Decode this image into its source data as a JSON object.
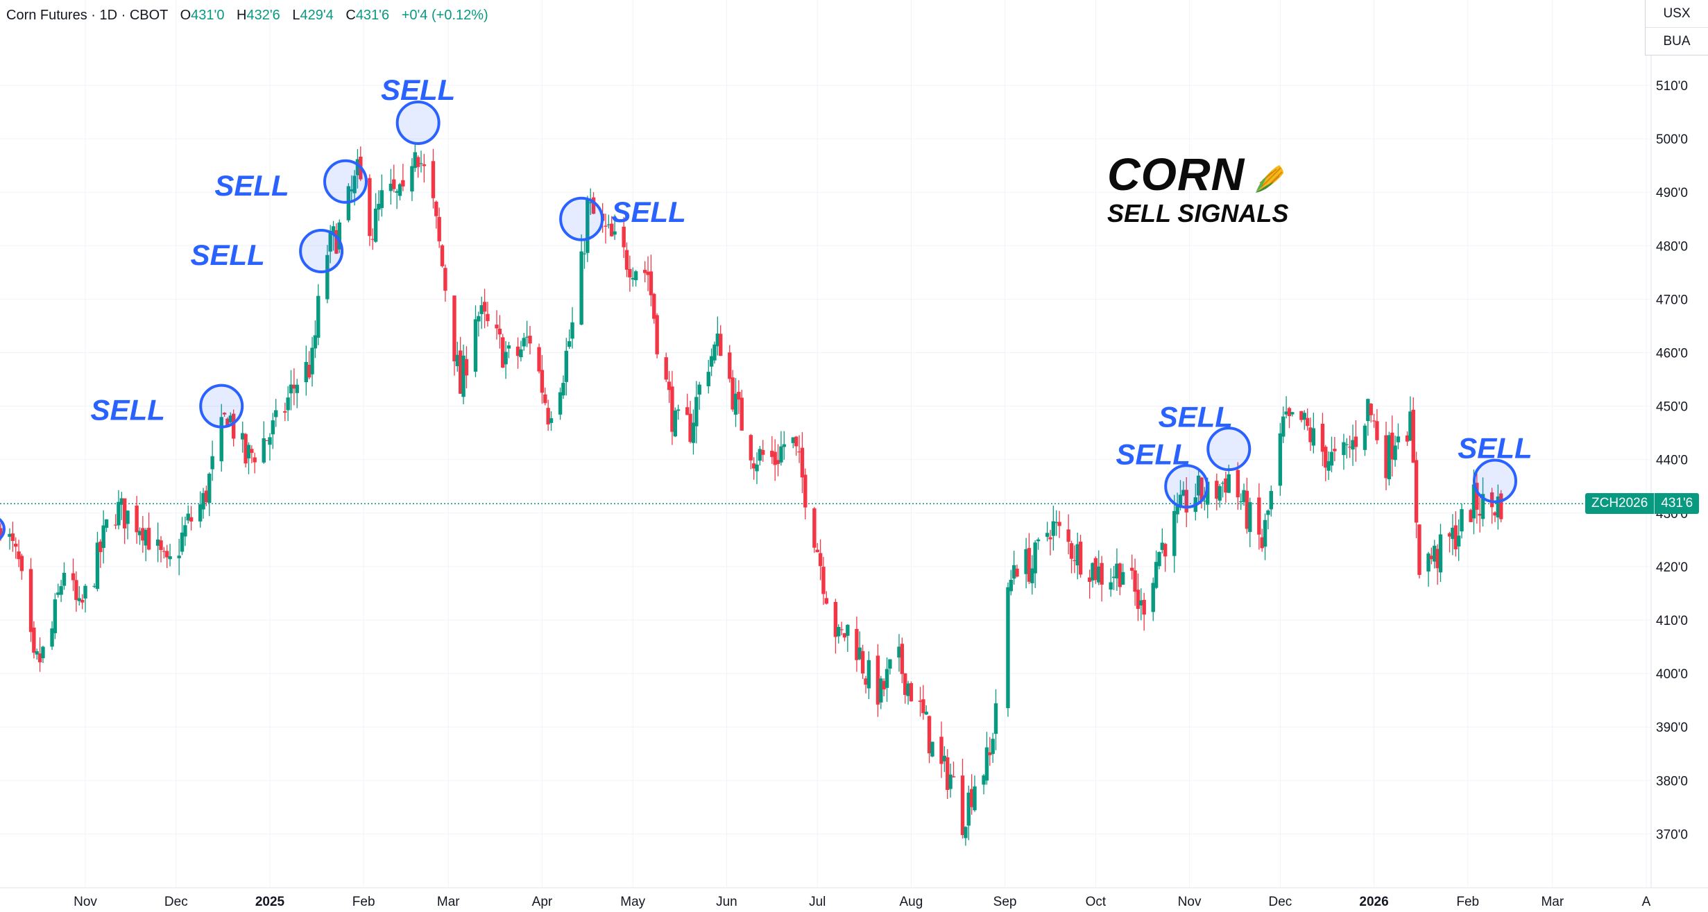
{
  "header": {
    "symbol": "Corn Futures · 1D · CBOT",
    "open_label": "O",
    "open": "431'0",
    "high_label": "H",
    "high": "432'6",
    "low_label": "L",
    "low": "429'4",
    "close_label": "C",
    "close": "431'6",
    "change": "+0'4 (+0.12%)"
  },
  "currency_panel": {
    "currency": "USX",
    "unit": "BUA"
  },
  "branding": {
    "title": "CORN",
    "subtitle": "SELL SIGNALS"
  },
  "price_badge": {
    "symbol": "ZCH2026",
    "price": "431'6"
  },
  "signal_label": "SELL",
  "colors": {
    "up": "#089981",
    "down": "#f23645",
    "signal": "#2962ff",
    "grid": "#f0f3fa",
    "axis_text": "#131722"
  },
  "chart_data": {
    "type": "candlestick",
    "title": "",
    "xlabel": "",
    "ylabel": "",
    "ylim": [
      364,
      516
    ],
    "grid": true,
    "y_ticks": [
      {
        "v": 510,
        "label": "510'0"
      },
      {
        "v": 500,
        "label": "500'0"
      },
      {
        "v": 490,
        "label": "490'0"
      },
      {
        "v": 480,
        "label": "480'0"
      },
      {
        "v": 470,
        "label": "470'0"
      },
      {
        "v": 460,
        "label": "460'0"
      },
      {
        "v": 450,
        "label": "450'0"
      },
      {
        "v": 440,
        "label": "440'0"
      },
      {
        "v": 430,
        "label": "430'0"
      },
      {
        "v": 420,
        "label": "420'0"
      },
      {
        "v": 410,
        "label": "410'0"
      },
      {
        "v": 400,
        "label": "400'0"
      },
      {
        "v": 390,
        "label": "390'0"
      },
      {
        "v": 380,
        "label": "380'0"
      },
      {
        "v": 370,
        "label": "370'0"
      }
    ],
    "x_ticks": [
      {
        "date": "2024-11-01",
        "label": "Nov",
        "bold": false
      },
      {
        "date": "2024-12-01",
        "label": "Dec",
        "bold": false
      },
      {
        "date": "2025-01-01",
        "label": "2025",
        "bold": true
      },
      {
        "date": "2025-02-01",
        "label": "Feb",
        "bold": false
      },
      {
        "date": "2025-03-01",
        "label": "Mar",
        "bold": false
      },
      {
        "date": "2025-04-01",
        "label": "Apr",
        "bold": false
      },
      {
        "date": "2025-05-01",
        "label": "May",
        "bold": false
      },
      {
        "date": "2025-06-01",
        "label": "Jun",
        "bold": false
      },
      {
        "date": "2025-07-01",
        "label": "Jul",
        "bold": false
      },
      {
        "date": "2025-08-01",
        "label": "Aug",
        "bold": false
      },
      {
        "date": "2025-09-01",
        "label": "Sep",
        "bold": false
      },
      {
        "date": "2025-10-01",
        "label": "Oct",
        "bold": false
      },
      {
        "date": "2025-11-01",
        "label": "Nov",
        "bold": false
      },
      {
        "date": "2025-12-01",
        "label": "Dec",
        "bold": false
      },
      {
        "date": "2026-01-01",
        "label": "2026",
        "bold": true
      },
      {
        "date": "2026-02-01",
        "label": "Feb",
        "bold": false
      },
      {
        "date": "2026-03-01",
        "label": "Mar",
        "bold": false
      },
      {
        "date": "2026-04-01",
        "label": "A",
        "bold": false
      }
    ],
    "last_price": 431.75,
    "series_shape": [
      [
        "2024-10-04",
        429
      ],
      [
        "2024-10-10",
        420
      ],
      [
        "2024-10-15",
        401
      ],
      [
        "2024-10-20",
        405
      ],
      [
        "2024-10-25",
        420
      ],
      [
        "2024-10-30",
        411
      ],
      [
        "2024-11-05",
        421
      ],
      [
        "2024-11-10",
        431
      ],
      [
        "2024-11-20",
        428
      ],
      [
        "2024-11-28",
        419
      ],
      [
        "2024-12-05",
        428
      ],
      [
        "2024-12-10",
        432
      ],
      [
        "2024-12-18",
        449
      ],
      [
        "2024-12-24",
        440
      ],
      [
        "2025-01-03",
        446
      ],
      [
        "2025-01-10",
        455
      ],
      [
        "2025-01-15",
        458
      ],
      [
        "2025-01-19",
        478
      ],
      [
        "2025-01-24",
        483
      ],
      [
        "2025-01-30",
        493
      ],
      [
        "2025-02-04",
        483
      ],
      [
        "2025-02-08",
        490
      ],
      [
        "2025-02-14",
        488
      ],
      [
        "2025-02-18",
        500
      ],
      [
        "2025-02-24",
        487
      ],
      [
        "2025-03-01",
        469
      ],
      [
        "2025-03-05",
        453
      ],
      [
        "2025-03-10",
        468
      ],
      [
        "2025-03-17",
        462
      ],
      [
        "2025-03-22",
        458
      ],
      [
        "2025-03-28",
        463
      ],
      [
        "2025-04-03",
        449
      ],
      [
        "2025-04-08",
        457
      ],
      [
        "2025-04-13",
        470
      ],
      [
        "2025-04-16",
        487
      ],
      [
        "2025-04-21",
        483
      ],
      [
        "2025-04-28",
        478
      ],
      [
        "2025-05-06",
        475
      ],
      [
        "2025-05-10",
        459
      ],
      [
        "2025-05-15",
        446
      ],
      [
        "2025-05-20",
        446
      ],
      [
        "2025-05-25",
        458
      ],
      [
        "2025-05-30",
        462
      ],
      [
        "2025-06-04",
        450
      ],
      [
        "2025-06-10",
        441
      ],
      [
        "2025-06-17",
        440
      ],
      [
        "2025-06-22",
        445
      ],
      [
        "2025-06-28",
        432
      ],
      [
        "2025-07-03",
        418
      ],
      [
        "2025-07-08",
        406
      ],
      [
        "2025-07-12",
        409
      ],
      [
        "2025-07-17",
        400
      ],
      [
        "2025-07-22",
        396
      ],
      [
        "2025-07-27",
        403
      ],
      [
        "2025-08-01",
        397
      ],
      [
        "2025-08-06",
        390
      ],
      [
        "2025-08-10",
        382
      ],
      [
        "2025-08-14",
        381
      ],
      [
        "2025-08-18",
        373
      ],
      [
        "2025-08-22",
        380
      ],
      [
        "2025-08-27",
        384
      ],
      [
        "2025-08-31",
        406
      ],
      [
        "2025-09-04",
        421
      ],
      [
        "2025-09-10",
        420
      ],
      [
        "2025-09-16",
        428
      ],
      [
        "2025-09-22",
        424
      ],
      [
        "2025-09-28",
        421
      ],
      [
        "2025-10-04",
        418
      ],
      [
        "2025-10-10",
        420
      ],
      [
        "2025-10-16",
        412
      ],
      [
        "2025-10-22",
        423
      ],
      [
        "2025-10-28",
        429
      ],
      [
        "2025-11-02",
        434
      ],
      [
        "2025-11-08",
        433
      ],
      [
        "2025-11-14",
        437
      ],
      [
        "2025-11-19",
        431
      ],
      [
        "2025-11-25",
        424
      ],
      [
        "2025-11-28",
        433
      ],
      [
        "2025-12-02",
        446
      ],
      [
        "2025-12-08",
        447
      ],
      [
        "2025-12-14",
        442
      ],
      [
        "2025-12-20",
        439
      ],
      [
        "2025-12-25",
        443
      ],
      [
        "2025-12-30",
        450
      ],
      [
        "2026-01-05",
        440
      ],
      [
        "2026-01-10",
        448
      ],
      [
        "2026-01-13",
        446
      ],
      [
        "2026-01-16",
        421
      ],
      [
        "2026-01-22",
        422
      ],
      [
        "2026-01-28",
        426
      ],
      [
        "2026-02-03",
        432
      ],
      [
        "2026-02-08",
        431
      ],
      [
        "2026-02-12",
        432
      ]
    ],
    "gaps": [
      [
        "2025-08-29",
        "2025-09-02"
      ],
      [
        "2025-11-28",
        "2025-12-01"
      ]
    ],
    "sell_signals": [
      {
        "date": "2024-12-16",
        "price": 450,
        "label_side": "left"
      },
      {
        "date": "2025-01-18",
        "price": 479,
        "label_side": "left"
      },
      {
        "date": "2025-01-26",
        "price": 492,
        "label_side": "left"
      },
      {
        "date": "2025-02-19",
        "price": 503,
        "label_side": "above"
      },
      {
        "date": "2025-04-14",
        "price": 485,
        "label_side": "right"
      },
      {
        "date": "2025-10-31",
        "price": 435,
        "label_side": "above-left"
      },
      {
        "date": "2025-11-14",
        "price": 442,
        "label_side": "above-left"
      },
      {
        "date": "2026-02-10",
        "price": 436,
        "label_side": "above"
      }
    ]
  }
}
